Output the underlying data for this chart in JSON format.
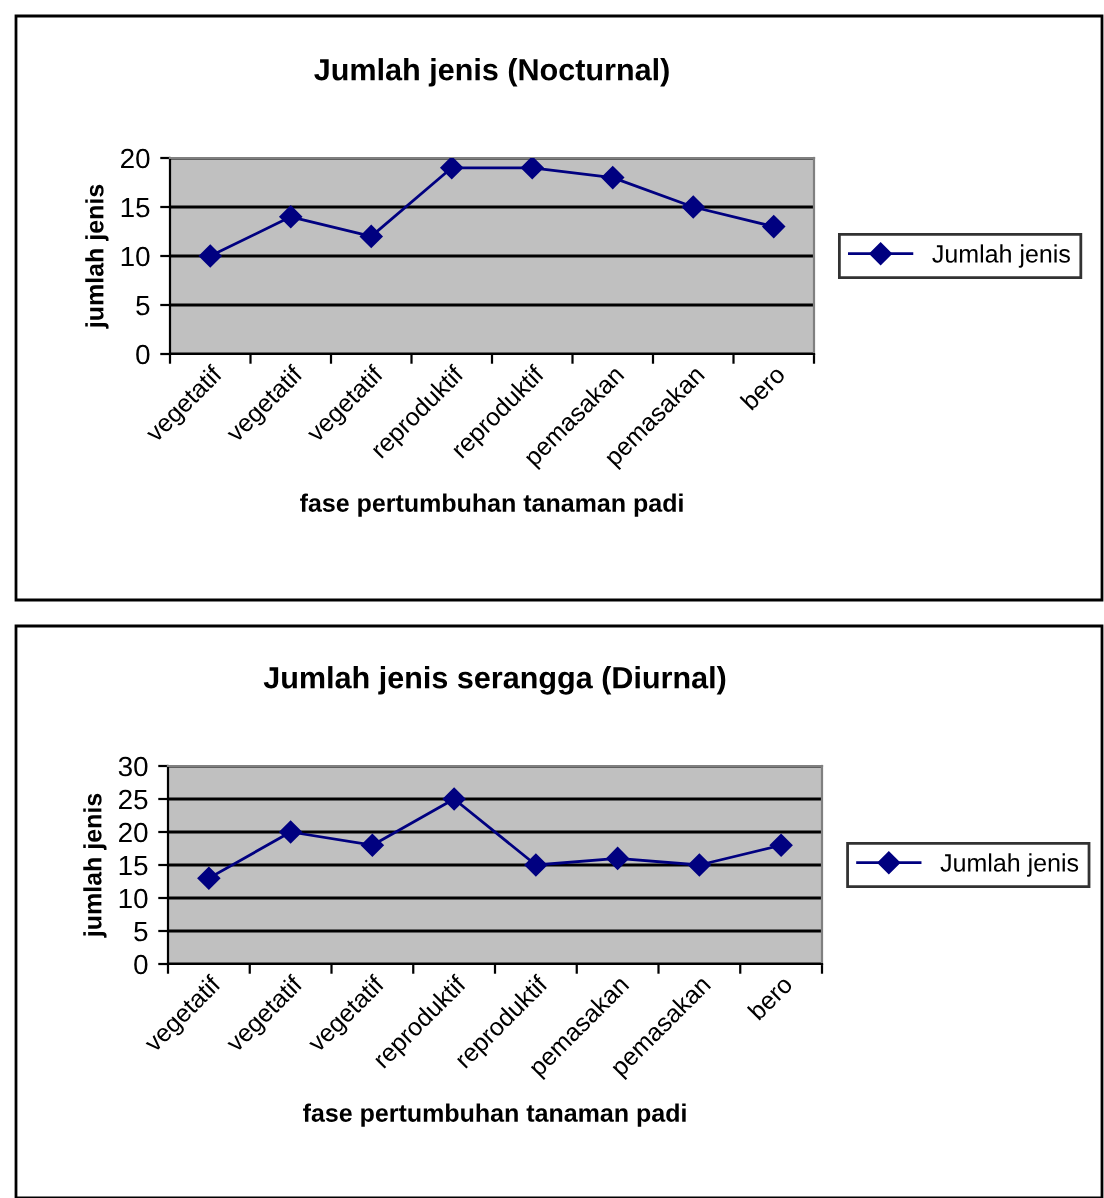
{
  "chart_data": [
    {
      "type": "line",
      "title": "Jumlah jenis (Nocturnal)",
      "xlabel": "fase pertumbuhan tanaman padi",
      "ylabel": "jumlah jenis",
      "categories": [
        "vegetatif",
        "vegetatif",
        "vegetatif",
        "reproduktif",
        "reproduktif",
        "pemasakan",
        "pemasakan",
        "bero"
      ],
      "series": [
        {
          "name": "Jumlah jenis",
          "color": "#000080",
          "values": [
            10,
            14,
            12,
            19,
            19,
            18,
            15,
            13
          ]
        }
      ],
      "ylim": [
        0,
        20
      ],
      "yticks": [
        0,
        5,
        10,
        15,
        20
      ],
      "grid": "y",
      "legend": "right",
      "marker": "diamond",
      "line_style": "solid"
    },
    {
      "type": "line",
      "title": "Jumlah jenis serangga (Diurnal)",
      "xlabel": "fase pertumbuhan tanaman padi",
      "ylabel": "jumlah jenis",
      "categories": [
        "vegetatif",
        "vegetatif",
        "vegetatif",
        "reproduktif",
        "reproduktif",
        "pemasakan",
        "pemasakan",
        "bero"
      ],
      "series": [
        {
          "name": "Jumlah jenis",
          "color": "#000080",
          "values": [
            13,
            20,
            18,
            25,
            15,
            16,
            15,
            18
          ]
        }
      ],
      "ylim": [
        0,
        30
      ],
      "yticks": [
        0,
        5,
        10,
        15,
        20,
        25,
        30
      ],
      "grid": "y",
      "legend": "right",
      "marker": "diamond",
      "line_style": "solid"
    }
  ]
}
